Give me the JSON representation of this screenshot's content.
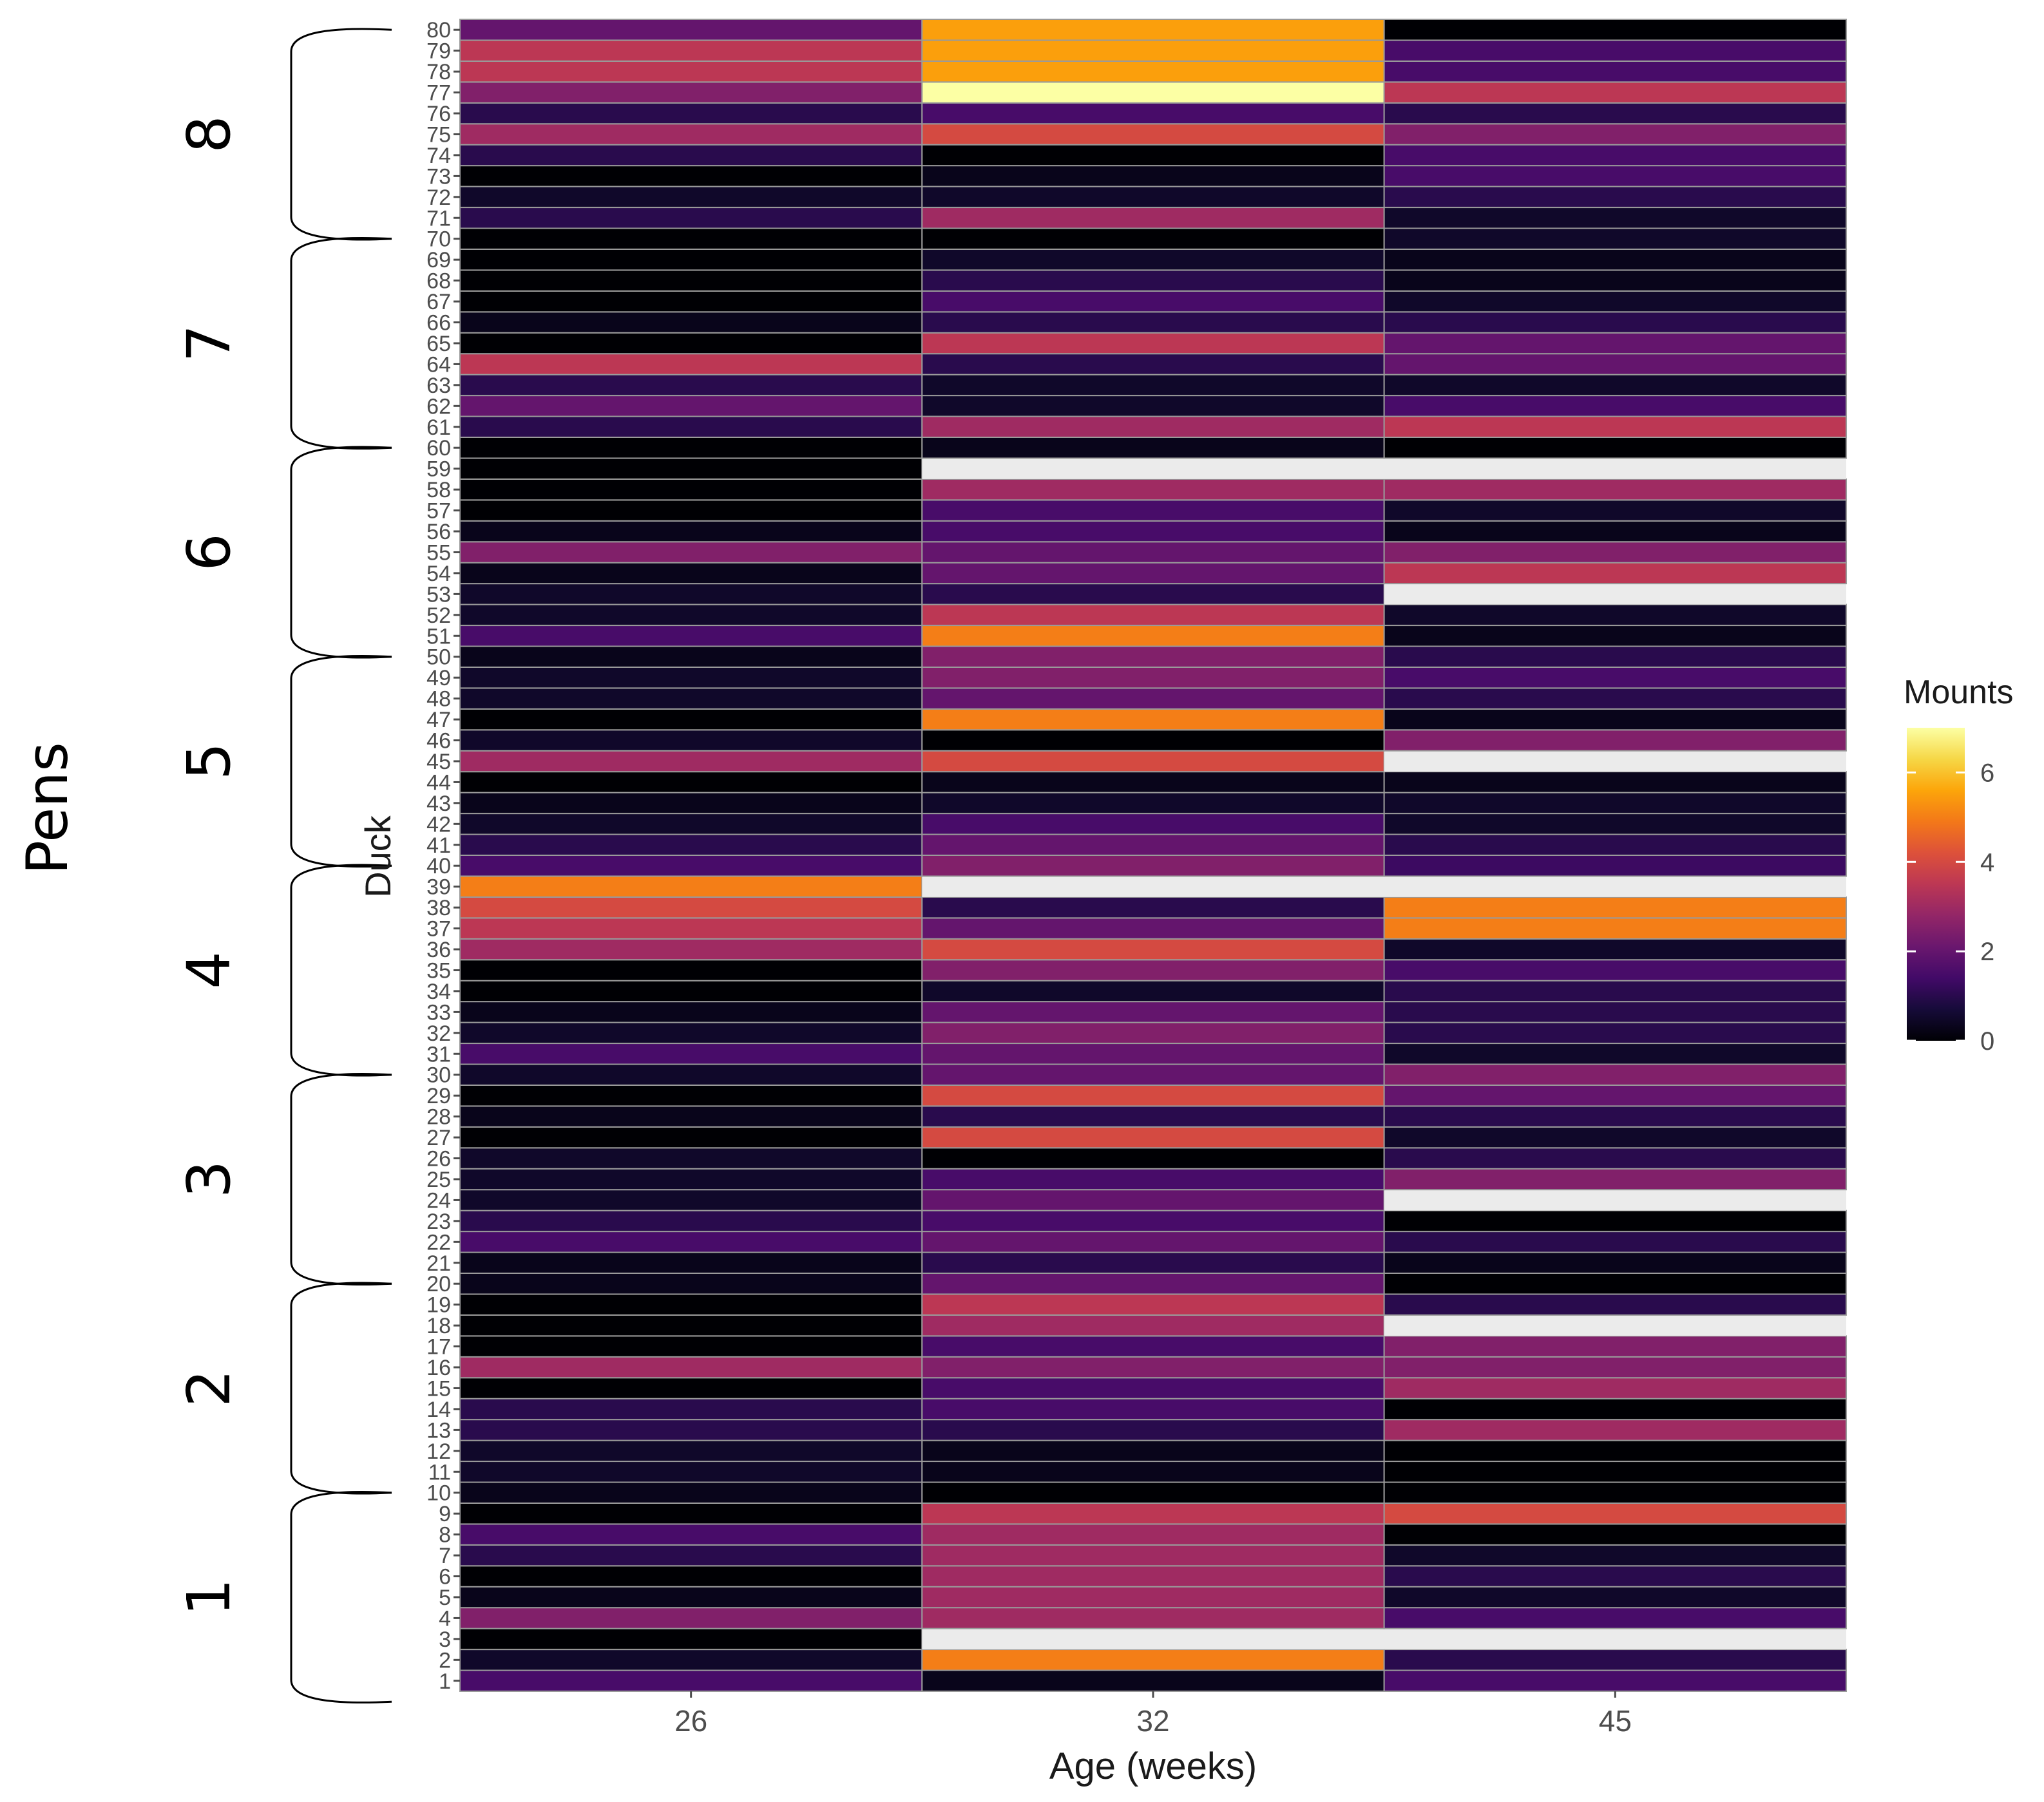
{
  "chart_data": {
    "type": "heatmap",
    "xlabel": "Age (weeks)",
    "ylabel": "Duck",
    "group_label": "Pens",
    "legend_title": "Mounts",
    "colormap": "inferno",
    "color_range": [
      0,
      7
    ],
    "legend_ticks": [
      0,
      2,
      4,
      6
    ],
    "x_categories": [
      "26",
      "32",
      "45"
    ],
    "y_categories": [
      "1",
      "2",
      "3",
      "4",
      "5",
      "6",
      "7",
      "8",
      "9",
      "10",
      "11",
      "12",
      "13",
      "14",
      "15",
      "16",
      "17",
      "18",
      "19",
      "20",
      "21",
      "22",
      "23",
      "24",
      "25",
      "26",
      "27",
      "28",
      "29",
      "30",
      "31",
      "32",
      "33",
      "34",
      "35",
      "36",
      "37",
      "38",
      "39",
      "40",
      "41",
      "42",
      "43",
      "44",
      "45",
      "46",
      "47",
      "48",
      "49",
      "50",
      "51",
      "52",
      "53",
      "54",
      "55",
      "56",
      "57",
      "58",
      "59",
      "60",
      "61",
      "62",
      "63",
      "64",
      "65",
      "66",
      "67",
      "68",
      "69",
      "70",
      "71",
      "72",
      "73",
      "74",
      "75",
      "76",
      "77",
      "78",
      "79",
      "80"
    ],
    "values": [
      [
        1.5,
        0.3,
        1.5
      ],
      [
        0.5,
        5,
        1
      ],
      [
        0,
        null,
        null
      ],
      [
        2.5,
        3,
        1.5
      ],
      [
        0.3,
        3,
        0.5
      ],
      [
        0,
        3,
        1
      ],
      [
        1,
        3,
        0.5
      ],
      [
        1.5,
        3,
        0
      ],
      [
        0,
        3.5,
        4
      ],
      [
        0.3,
        0,
        0
      ],
      [
        0.5,
        0.3,
        0
      ],
      [
        0.5,
        0.3,
        0
      ],
      [
        1,
        1,
        3
      ],
      [
        1,
        1.5,
        0
      ],
      [
        0,
        1.5,
        3
      ],
      [
        3,
        2.5,
        2.5
      ],
      [
        0,
        1.5,
        2.5
      ],
      [
        0,
        3,
        null
      ],
      [
        0,
        3.5,
        1
      ],
      [
        0.3,
        2,
        0
      ],
      [
        0.3,
        1,
        0.3
      ],
      [
        1.5,
        2,
        1
      ],
      [
        1,
        1.5,
        0
      ],
      [
        0.5,
        2,
        null
      ],
      [
        0.5,
        1.5,
        2.5
      ],
      [
        0.5,
        0,
        1
      ],
      [
        0,
        4,
        0.5
      ],
      [
        0.3,
        1,
        1
      ],
      [
        0,
        4,
        2
      ],
      [
        0.5,
        2,
        2.5
      ],
      [
        1.5,
        2,
        0.5
      ],
      [
        0.5,
        2.5,
        1
      ],
      [
        0.3,
        2,
        1
      ],
      [
        0,
        0.5,
        1
      ],
      [
        0,
        2.5,
        1.5
      ],
      [
        3,
        4,
        0.5
      ],
      [
        3.5,
        2,
        5
      ],
      [
        4,
        1,
        5
      ],
      [
        5,
        null,
        null
      ],
      [
        1.5,
        2.5,
        1.3
      ],
      [
        1,
        2,
        1
      ],
      [
        0.5,
        1.5,
        0.5
      ],
      [
        0.3,
        0.5,
        0.5
      ],
      [
        0,
        0.3,
        0.3
      ],
      [
        3,
        4,
        null
      ],
      [
        0.5,
        0,
        2.5
      ],
      [
        0,
        5,
        0.3
      ],
      [
        0.5,
        2,
        1
      ],
      [
        0.5,
        2.5,
        1.5
      ],
      [
        0.3,
        2.5,
        1
      ],
      [
        1.5,
        5,
        0.3
      ],
      [
        0.5,
        3.5,
        0.5
      ],
      [
        0.5,
        1,
        null
      ],
      [
        0.3,
        2,
        3.5
      ],
      [
        2.5,
        2,
        2.5
      ],
      [
        0.3,
        1.5,
        0.3
      ],
      [
        0,
        1.5,
        0.5
      ],
      [
        0,
        3,
        3
      ],
      [
        0,
        null,
        null
      ],
      [
        0,
        0.3,
        0
      ],
      [
        1,
        3,
        3.5
      ],
      [
        2,
        0.5,
        1.5
      ],
      [
        1,
        0.5,
        0.5
      ],
      [
        3.5,
        1,
        2
      ],
      [
        0,
        3.5,
        2
      ],
      [
        0.3,
        1,
        1
      ],
      [
        0,
        1.5,
        0.5
      ],
      [
        0,
        1,
        0.3
      ],
      [
        0,
        0.5,
        0.3
      ],
      [
        0,
        0,
        0.5
      ],
      [
        1,
        3,
        0.5
      ],
      [
        0.5,
        0.5,
        1
      ],
      [
        0,
        0.3,
        1.5
      ],
      [
        1,
        0,
        1.5
      ],
      [
        3,
        4,
        2.5
      ],
      [
        1,
        1.5,
        1
      ],
      [
        2.5,
        7,
        3.5
      ],
      [
        3.5,
        5.5,
        1.5
      ],
      [
        3.5,
        5.5,
        1.5
      ],
      [
        2,
        5.5,
        0
      ]
    ],
    "groups": [
      {
        "label": "1",
        "duck_from": 1,
        "duck_to": 10
      },
      {
        "label": "2",
        "duck_from": 11,
        "duck_to": 20
      },
      {
        "label": "3",
        "duck_from": 21,
        "duck_to": 30
      },
      {
        "label": "4",
        "duck_from": 31,
        "duck_to": 40
      },
      {
        "label": "5",
        "duck_from": 41,
        "duck_to": 50
      },
      {
        "label": "6",
        "duck_from": 51,
        "duck_to": 60
      },
      {
        "label": "7",
        "duck_from": 61,
        "duck_to": 70
      },
      {
        "label": "8",
        "duck_from": 71,
        "duck_to": 80
      }
    ]
  }
}
